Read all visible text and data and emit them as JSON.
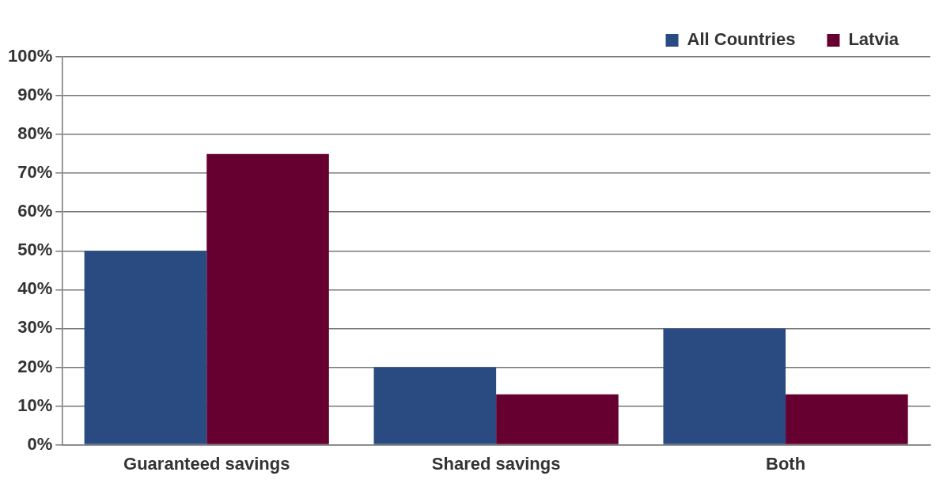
{
  "chart_data": {
    "type": "bar",
    "categories": [
      "Guaranteed savings",
      "Shared savings",
      "Both"
    ],
    "series": [
      {
        "name": "All Countries",
        "color": "#2a4a82",
        "values": [
          50,
          20,
          30
        ]
      },
      {
        "name": "Latvia",
        "color": "#660030",
        "values": [
          75,
          13,
          13
        ]
      }
    ],
    "ylim": [
      0,
      100
    ],
    "yticks": [
      {
        "value": 0,
        "label": "0%"
      },
      {
        "value": 10,
        "label": "10%"
      },
      {
        "value": 20,
        "label": "20%"
      },
      {
        "value": 30,
        "label": "30%"
      },
      {
        "value": 40,
        "label": "40%"
      },
      {
        "value": 50,
        "label": "50%"
      },
      {
        "value": 60,
        "label": "60%"
      },
      {
        "value": 70,
        "label": "70%"
      },
      {
        "value": 80,
        "label": "80%"
      },
      {
        "value": 90,
        "label": "90%"
      },
      {
        "value": 100,
        "label": "100%"
      }
    ],
    "grid": "y",
    "legend": "top right"
  }
}
